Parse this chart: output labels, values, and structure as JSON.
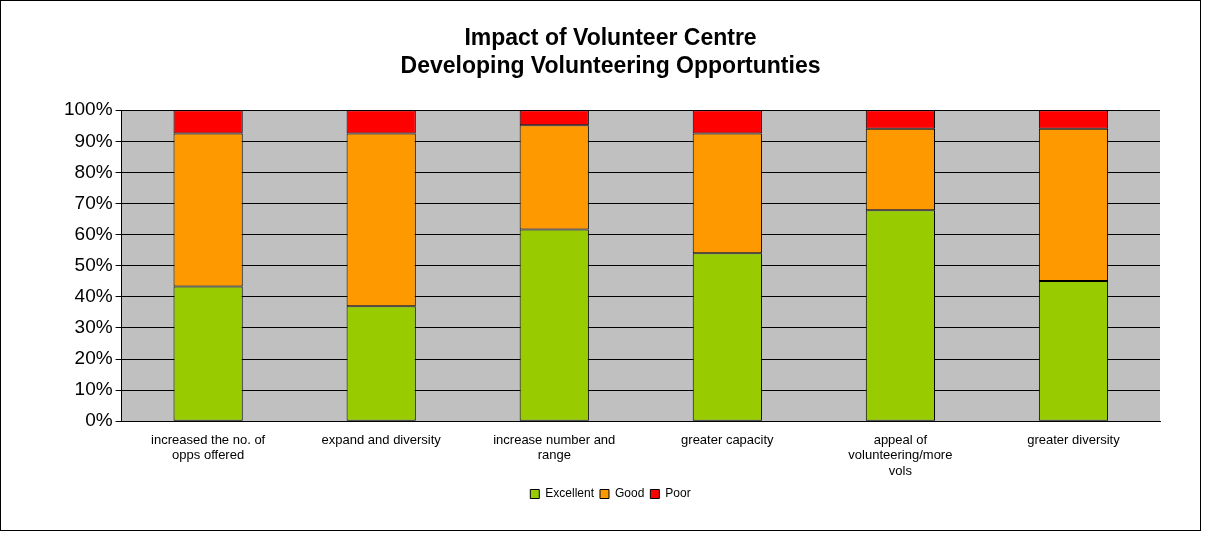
{
  "chart_data": {
    "type": "bar",
    "title": "Impact of Volunteer Centre\nDeveloping Volunteering Opportunties",
    "stacked": true,
    "categories": [
      "increased the no. of opps offered",
      "expand and diversity",
      "increase number and range",
      "greater capacity",
      "appeal of volunteering/more vols",
      "greater diversity"
    ],
    "series": [
      {
        "name": "Excellent",
        "color": "#99cc00",
        "values": [
          43.3,
          37.0,
          61.6,
          54.0,
          67.8,
          45.1
        ]
      },
      {
        "name": "Good",
        "color": "#ff9900",
        "values": [
          49.2,
          55.5,
          33.6,
          38.5,
          26.2,
          48.9
        ]
      },
      {
        "name": "Poor",
        "color": "#ff0000",
        "values": [
          7.5,
          7.5,
          4.8,
          7.5,
          6.0,
          6.0
        ]
      }
    ],
    "ylim": [
      0,
      100
    ],
    "yticks": [
      {
        "value": 0,
        "label": "0%"
      },
      {
        "value": 10,
        "label": "10%"
      },
      {
        "value": 20,
        "label": "20%"
      },
      {
        "value": 30,
        "label": "30%"
      },
      {
        "value": 40,
        "label": "40%"
      },
      {
        "value": 50,
        "label": "50%"
      },
      {
        "value": 60,
        "label": "60%"
      },
      {
        "value": 70,
        "label": "70%"
      },
      {
        "value": 80,
        "label": "80%"
      },
      {
        "value": 90,
        "label": "90%"
      },
      {
        "value": 100,
        "label": "100%"
      }
    ],
    "grid": "y",
    "legend": "bottom"
  }
}
